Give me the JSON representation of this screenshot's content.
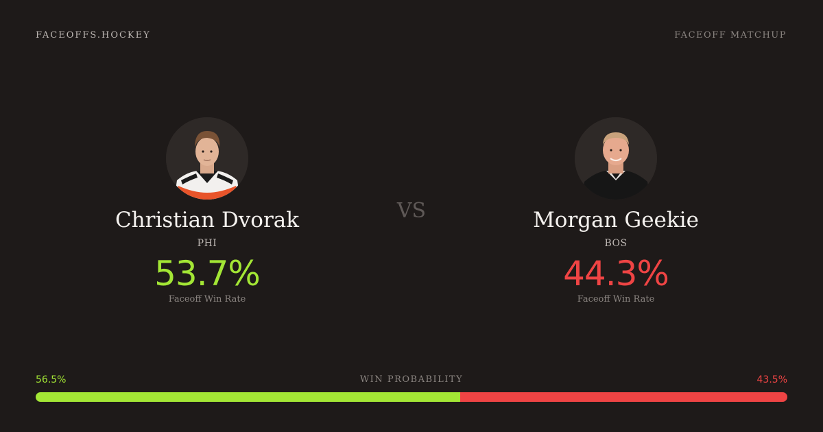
{
  "brand": "FACEOFFS.HOCKEY",
  "matchup_label": "FACEOFF MATCHUP",
  "vs": "VS",
  "colors": {
    "background": "#1e1a19",
    "player1_accent": "#a3e635",
    "player2_accent": "#ef4444"
  },
  "player1": {
    "name": "Christian Dvorak",
    "team": "PHI",
    "win_rate": "53.7%",
    "win_rate_label": "Faceoff Win Rate",
    "avatar_icon": "player-headshot-icon"
  },
  "player2": {
    "name": "Morgan Geekie",
    "team": "BOS",
    "win_rate": "44.3%",
    "win_rate_label": "Faceoff Win Rate",
    "avatar_icon": "player-headshot-icon"
  },
  "win_probability": {
    "title": "WIN PROBABILITY",
    "left_label": "56.5%",
    "right_label": "43.5%",
    "left_value": 56.5,
    "right_value": 43.5
  }
}
